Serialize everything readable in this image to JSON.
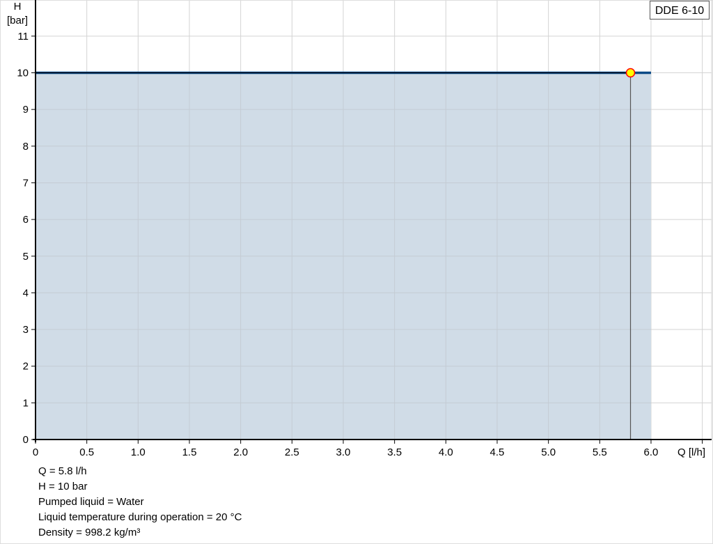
{
  "chart_data": {
    "type": "area",
    "title": "",
    "xlabel": "Q [l/h]",
    "ylabel_line1": "H",
    "ylabel_line2": "[bar]",
    "xlim": [
      0,
      6.5
    ],
    "ylim": [
      0,
      11.6
    ],
    "grid": true,
    "x_ticks": [
      "0",
      "0.5",
      "1.0",
      "1.5",
      "2.0",
      "2.5",
      "3.0",
      "3.5",
      "4.0",
      "4.5",
      "5.0",
      "5.5",
      "6.0"
    ],
    "y_ticks": [
      "0",
      "1",
      "2",
      "3",
      "4",
      "5",
      "6",
      "7",
      "8",
      "9",
      "10",
      "11"
    ],
    "series": [
      {
        "name": "DDE 6-10",
        "x": [
          0,
          6.0
        ],
        "y": [
          10,
          10
        ],
        "color": "#0b4a86",
        "fill": "#d0dce7"
      }
    ],
    "operating_point": {
      "x": 5.8,
      "y": 10,
      "color": "#ffff00",
      "stroke": "#ff0000"
    },
    "legend": {
      "label": "DDE 6-10",
      "placement": "top-right"
    }
  },
  "info": [
    "Q = 5.8 l/h",
    "H = 10 bar",
    "Pumped liquid = Water",
    "Liquid temperature during operation = 20 °C",
    "Density = 998.2 kg/m³"
  ]
}
